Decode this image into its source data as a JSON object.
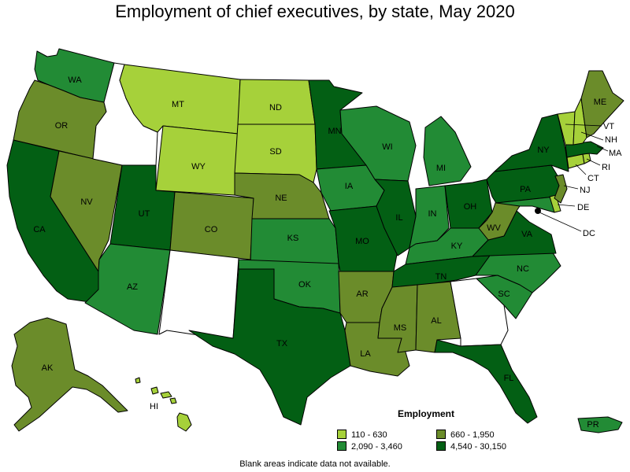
{
  "title": "Employment of chief executives, by state, May 2020",
  "legend": {
    "title": "Employment",
    "items": [
      {
        "id": "c1",
        "label": "110 - 630",
        "color": "#a6d13a"
      },
      {
        "id": "c2",
        "label": "660 - 1,950",
        "color": "#6b8c2a"
      },
      {
        "id": "c3",
        "label": "2,090 - 3,460",
        "color": "#228b35"
      },
      {
        "id": "c4",
        "label": "4,540 - 30,150",
        "color": "#035f14"
      }
    ]
  },
  "footnote": "Blank areas indicate data not available.",
  "no_data_color": "#ffffff",
  "states": [
    {
      "code": "WA",
      "label": "WA",
      "cls": "c3"
    },
    {
      "code": "OR",
      "label": "OR",
      "cls": "c2"
    },
    {
      "code": "CA",
      "label": "CA",
      "cls": "c4"
    },
    {
      "code": "NV",
      "label": "NV",
      "cls": "c2"
    },
    {
      "code": "ID",
      "label": "",
      "cls": ""
    },
    {
      "code": "MT",
      "label": "MT",
      "cls": "c1"
    },
    {
      "code": "WY",
      "label": "WY",
      "cls": "c1"
    },
    {
      "code": "UT",
      "label": "UT",
      "cls": "c4"
    },
    {
      "code": "AZ",
      "label": "AZ",
      "cls": "c3"
    },
    {
      "code": "CO",
      "label": "CO",
      "cls": "c2"
    },
    {
      "code": "NM",
      "label": "",
      "cls": ""
    },
    {
      "code": "ND",
      "label": "ND",
      "cls": "c1"
    },
    {
      "code": "SD",
      "label": "SD",
      "cls": "c1"
    },
    {
      "code": "NE",
      "label": "NE",
      "cls": "c2"
    },
    {
      "code": "KS",
      "label": "KS",
      "cls": "c3"
    },
    {
      "code": "OK",
      "label": "OK",
      "cls": "c3"
    },
    {
      "code": "TX",
      "label": "TX",
      "cls": "c4"
    },
    {
      "code": "MN",
      "label": "MN",
      "cls": "c4"
    },
    {
      "code": "IA",
      "label": "IA",
      "cls": "c3"
    },
    {
      "code": "MO",
      "label": "MO",
      "cls": "c4"
    },
    {
      "code": "AR",
      "label": "AR",
      "cls": "c2"
    },
    {
      "code": "LA",
      "label": "LA",
      "cls": "c2"
    },
    {
      "code": "WI",
      "label": "WI",
      "cls": "c3"
    },
    {
      "code": "IL",
      "label": "IL",
      "cls": "c4"
    },
    {
      "code": "MI",
      "label": "MI",
      "cls": "c3"
    },
    {
      "code": "IN",
      "label": "IN",
      "cls": "c3"
    },
    {
      "code": "OH",
      "label": "OH",
      "cls": "c4"
    },
    {
      "code": "KY",
      "label": "KY",
      "cls": "c3"
    },
    {
      "code": "TN",
      "label": "TN",
      "cls": "c4"
    },
    {
      "code": "MS",
      "label": "MS",
      "cls": "c2"
    },
    {
      "code": "AL",
      "label": "AL",
      "cls": "c2"
    },
    {
      "code": "GA",
      "label": "",
      "cls": ""
    },
    {
      "code": "FL",
      "label": "FL",
      "cls": "c4"
    },
    {
      "code": "SC",
      "label": "SC",
      "cls": "c3"
    },
    {
      "code": "NC",
      "label": "NC",
      "cls": "c3"
    },
    {
      "code": "VA",
      "label": "VA",
      "cls": "c4"
    },
    {
      "code": "WV",
      "label": "WV",
      "cls": "c2"
    },
    {
      "code": "PA",
      "label": "PA",
      "cls": "c4"
    },
    {
      "code": "NY",
      "label": "NY",
      "cls": "c4"
    },
    {
      "code": "ME",
      "label": "ME",
      "cls": "c2"
    },
    {
      "code": "VT",
      "label": "VT",
      "cls": "c1"
    },
    {
      "code": "NH",
      "label": "NH",
      "cls": "c1"
    },
    {
      "code": "MA",
      "label": "MA",
      "cls": "c4"
    },
    {
      "code": "RI",
      "label": "RI",
      "cls": "c1"
    },
    {
      "code": "CT",
      "label": "CT",
      "cls": "c1"
    },
    {
      "code": "NJ",
      "label": "NJ",
      "cls": "c2"
    },
    {
      "code": "DE",
      "label": "DE",
      "cls": "c1"
    },
    {
      "code": "MD",
      "label": "",
      "cls": "c3"
    },
    {
      "code": "DC",
      "label": "DC",
      "cls": "c4"
    },
    {
      "code": "AK",
      "label": "AK",
      "cls": "c2"
    },
    {
      "code": "HI",
      "label": "HI",
      "cls": "c1"
    },
    {
      "code": "PR",
      "label": "PR",
      "cls": "c3"
    }
  ]
}
